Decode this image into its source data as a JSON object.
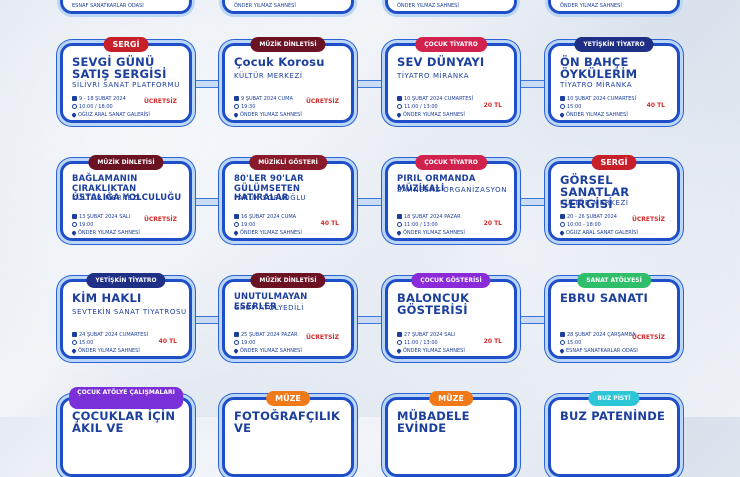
{
  "top": [
    {
      "text": "ESNAF SANATKARLAR ODASI"
    },
    {
      "text": "ÖNDER YILMAZ SAHNESİ"
    },
    {
      "text": "ÖNDER YILMAZ SAHNESİ"
    },
    {
      "text": "ÖNDER YILMAZ SAHNESİ"
    }
  ],
  "rows": [
    [
      {
        "tag": "SERGİ",
        "tag_color": "#c8202a",
        "big": true,
        "title": "SEVGİ GÜNÜ SATIŞ SERGİSİ",
        "sub": "SİLİVRİ SANAT PLATFORMU",
        "date": "9 - 18 ŞUBAT 2024",
        "time": "10:00 / 18:00",
        "place": "OĞUZ ARAL SANAT GALERİSİ",
        "price": "ÜCRETSİZ"
      },
      {
        "tag": "MÜZİK DİNLETİSİ",
        "tag_color": "#6b1223",
        "title": "Çocuk Korosu",
        "sub": "KÜLTÜR MERKEZİ",
        "date": "9 ŞUBAT 2024 CUMA",
        "time": "19:30",
        "place": "ÖNDER YILMAZ SAHNESİ",
        "price": "ÜCRETSİZ"
      },
      {
        "tag": "ÇOCUK TİYATRO",
        "tag_color": "#d1224e",
        "title": "SEV DÜNYAYI",
        "sub": "TİYATRO MİRANKA",
        "date": "10 ŞUBAT 2024 CUMARTESİ",
        "time": "11:00 / 13:00",
        "place": "ÖNDER YILMAZ SAHNESİ",
        "price": "20 TL"
      },
      {
        "tag": "YETİŞKİN TİYATRO",
        "tag_color": "#1f2f86",
        "title": "ÖN BAHÇE ÖYKÜLERİM",
        "sub": "TİYATRO MİRANKA",
        "date": "10 ŞUBAT 2024 CUMARTESİ",
        "time": "15:00",
        "place": "ÖNDER YILMAZ SAHNESİ",
        "price": "40 TL"
      }
    ],
    [
      {
        "tag": "MÜZİK DİNLETİSİ",
        "tag_color": "#6b1223",
        "small": true,
        "title": "BAĞLAMANIN ÇIRAKLIKTAN USTALIĞA YOLCULUĞU",
        "sub": "KÜLTÜR MERKEZİ",
        "date": "13 ŞUBAT 2024 SALI",
        "time": "19:00",
        "place": "ÖNDER YILMAZ SAHNESİ",
        "price": "ÜCRETSİZ"
      },
      {
        "tag": "MÜZİKLİ GÖSTERİ",
        "tag_color": "#8a1a2a",
        "small": true,
        "title": "80'LER 90'LAR GÜLÜMSETEN HATIRALAR",
        "sub": "FARUK SOFUOĞLU",
        "date": "16 ŞUBAT 2024 CUMA",
        "time": "19:00",
        "place": "ÖNDER YILMAZ SAHNESİ",
        "price": "40 TL"
      },
      {
        "tag": "ÇOCUK TİYATRO",
        "tag_color": "#d1224e",
        "small": true,
        "title": "PIRIL ORMANDA MÜZİKALİ",
        "sub": "SAHNEBAZ ORGANİZASYON",
        "date": "18 ŞUBAT 2024 PAZAR",
        "time": "11:00 / 13:00",
        "place": "ÖNDER YILMAZ SAHNESİ",
        "price": "20 TL"
      },
      {
        "tag": "SERGİ",
        "tag_color": "#c8202a",
        "big": true,
        "title": "GÖRSEL SANATLAR SERGİSİ",
        "sub": "KÜLTÜR MERKEZİ",
        "date": "20 - 26 ŞUBAT 2024",
        "time": "10:00 - 18:00",
        "place": "OĞUZ ARAL SANAT GALERİSİ",
        "price": "ÜCRETSİZ"
      }
    ],
    [
      {
        "tag": "YETİŞKİN TİYATRO",
        "tag_color": "#1f2f86",
        "title": "KİM HAKLI",
        "sub": "SEVTEKİN SANAT TİYATROSU",
        "date": "24 ŞUBAT 2024 CUMARTESİ",
        "time": "15:00",
        "place": "ÖNDER YILMAZ SAHNESİ",
        "price": "40 TL"
      },
      {
        "tag": "MÜZİK DİNLETİSİ",
        "tag_color": "#6b1223",
        "small": true,
        "title": "UNUTULMAYAN ESERLER",
        "sub": "GRUP ATÖLYEDİLİ",
        "date": "25 ŞUBAT 2024 PAZAR",
        "time": "19:00",
        "place": "ÖNDER YILMAZ SAHNESİ",
        "price": "ÜCRETSİZ"
      },
      {
        "tag": "ÇOCUK GÖSTERİSİ",
        "tag_color": "#8a2ad8",
        "title": "BALONCUK GÖSTERİSİ",
        "sub": "",
        "date": "27 ŞUBAT 2024 SALI",
        "time": "11:00 / 13:00",
        "place": "ÖNDER YILMAZ SAHNESİ",
        "price": "20 TL"
      },
      {
        "tag": "SANAT ATÖLYESİ",
        "tag_color": "#2fbf6a",
        "title": "EBRU SANATI",
        "sub": "",
        "date": "28 ŞUBAT 2024 ÇARŞAMBA",
        "time": "15:00",
        "place": "ESNAF SANATKARLAR ODASI",
        "price": "ÜCRETSİZ"
      }
    ],
    [
      {
        "tag": "ÇOCUK ATÖLYE ÇALIŞMALARI",
        "tag_color": "#7a30d6",
        "two": true,
        "title": "ÇOCUKLAR İÇİN AKIL VE"
      },
      {
        "tag": "MÜZE",
        "tag_color": "#f07a1a",
        "big": true,
        "title": "FOTOĞRAFÇILIK VE"
      },
      {
        "tag": "MÜZE",
        "tag_color": "#f07a1a",
        "big": true,
        "title": "MÜBADELE EVİNDE"
      },
      {
        "tag": "BUZ PİSTİ",
        "tag_color": "#2dc6d6",
        "title": "BUZ PATENİNDE"
      }
    ]
  ]
}
